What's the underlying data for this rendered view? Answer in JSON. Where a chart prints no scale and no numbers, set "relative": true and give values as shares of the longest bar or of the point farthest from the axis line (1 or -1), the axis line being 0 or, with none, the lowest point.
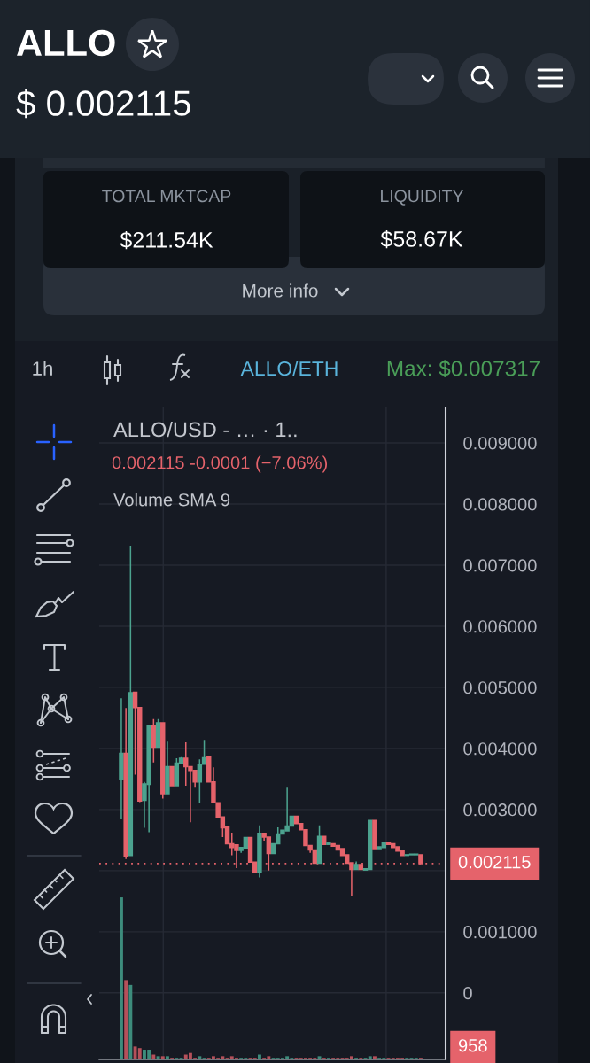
{
  "chart_data": [
    {
      "type": "other",
      "title": "ALLO",
      "annotations": [
        "$ 0.002115",
        "TOTAL MKTCAP",
        "$211.54K",
        "LIQUIDITY",
        "$58.67K",
        "More info",
        "1h",
        "ALLO/ETH",
        "Max: $0.007317"
      ]
    },
    {
      "type": "candlestick",
      "title": "ALLO/USD - … · 1..",
      "subtitle": "0.002115 -0.0001 (−7.06%)",
      "categories": [
        null,
        null,
        null,
        null,
        null,
        null,
        null,
        null,
        null,
        null,
        null,
        null,
        null,
        null,
        null,
        null,
        null,
        null,
        null,
        null,
        null,
        null,
        null,
        null,
        null,
        null,
        null,
        null,
        null,
        null,
        null,
        null,
        null,
        null,
        null,
        null,
        null,
        null,
        null,
        null,
        null,
        null,
        null,
        null,
        null,
        null,
        null,
        null,
        null,
        null,
        null,
        null,
        null,
        null,
        null,
        null,
        null,
        null,
        null,
        null,
        null,
        null,
        null,
        null,
        null,
        null
      ],
      "ohlc": [
        [
          0.00349,
          0.00482,
          0.00284,
          0.00392
        ],
        [
          0.00392,
          0.00466,
          0.00219,
          0.00224
        ],
        [
          0.00225,
          0.007317,
          0.00225,
          0.00491
        ],
        [
          0.00492,
          0.00492,
          0.00357,
          0.00467
        ],
        [
          0.00467,
          0.00467,
          0.00312,
          0.00314
        ],
        [
          0.00315,
          0.00345,
          0.0027,
          0.00342
        ],
        [
          0.00341,
          0.00438,
          0.00263,
          0.00438
        ],
        [
          0.00438,
          0.00448,
          0.00377,
          0.00402
        ],
        [
          0.00402,
          0.00448,
          0.00402,
          0.00442
        ],
        [
          0.00442,
          0.00442,
          0.00318,
          0.00326
        ],
        [
          0.00326,
          0.00411,
          0.00326,
          0.0037
        ],
        [
          0.0037,
          0.0037,
          0.00339,
          0.00339
        ],
        [
          0.00339,
          0.00384,
          0.00339,
          0.00376
        ],
        [
          0.00376,
          0.00387,
          0.00376,
          0.00384
        ],
        [
          0.00384,
          0.0041,
          0.00339,
          0.0037
        ],
        [
          0.0037,
          0.0037,
          0.00279,
          0.00364
        ],
        [
          0.00364,
          0.00364,
          0.00337,
          0.00345
        ],
        [
          0.00345,
          0.00382,
          0.00311,
          0.00374
        ],
        [
          0.00374,
          0.00414,
          0.00374,
          0.00386
        ],
        [
          0.00387,
          0.00388,
          0.00345,
          0.00345
        ],
        [
          0.00345,
          0.00369,
          0.00311,
          0.00311
        ],
        [
          0.00311,
          0.00311,
          0.00288,
          0.00288
        ],
        [
          0.00288,
          0.00288,
          0.00255,
          0.0027
        ],
        [
          0.00272,
          0.00272,
          0.00244,
          0.00244
        ],
        [
          0.00244,
          0.00262,
          0.00225,
          0.00238
        ],
        [
          0.00242,
          0.00242,
          0.00204,
          0.00233
        ],
        [
          0.00233,
          0.00238,
          0.00229,
          0.00238
        ],
        [
          0.00237,
          0.00254,
          0.00237,
          0.00254
        ],
        [
          0.00254,
          0.00254,
          0.00214,
          0.00214
        ],
        [
          0.00214,
          0.00214,
          0.00198,
          0.00198
        ],
        [
          0.00198,
          0.00274,
          0.00189,
          0.00261
        ],
        [
          0.00261,
          0.00261,
          0.00249,
          0.00255
        ],
        [
          0.00255,
          0.00255,
          0.002,
          0.00228
        ],
        [
          0.00228,
          0.00244,
          0.00228,
          0.00244
        ],
        [
          0.00244,
          0.00271,
          0.00244,
          0.0026
        ],
        [
          0.0026,
          0.00266,
          0.0026,
          0.00266
        ],
        [
          0.00265,
          0.00337,
          0.00265,
          0.00273
        ],
        [
          0.00273,
          0.00289,
          0.00273,
          0.00289
        ],
        [
          0.00289,
          0.00289,
          0.00277,
          0.00277
        ],
        [
          0.00277,
          0.00277,
          0.00267,
          0.00267
        ],
        [
          0.00267,
          0.00267,
          0.00241,
          0.00241
        ],
        [
          0.00241,
          0.00241,
          0.00229,
          0.00234
        ],
        [
          0.00234,
          0.00234,
          0.00212,
          0.00212
        ],
        [
          0.00212,
          0.00274,
          0.00212,
          0.00256
        ],
        [
          0.00256,
          0.00256,
          0.00243,
          0.00243
        ],
        [
          0.00243,
          0.00245,
          0.00243,
          0.00245
        ],
        [
          0.00244,
          0.00244,
          0.0024,
          0.0024
        ],
        [
          0.00241,
          0.00241,
          0.00234,
          0.00234
        ],
        [
          0.00236,
          0.00236,
          0.00225,
          0.00225
        ],
        [
          0.00226,
          0.00226,
          0.00212,
          0.00212
        ],
        [
          0.00213,
          0.00213,
          0.00158,
          0.00202
        ],
        [
          0.00202,
          0.00215,
          0.00202,
          0.0021
        ],
        [
          0.0021,
          0.0021,
          0.00202,
          0.00202
        ],
        [
          0.00201,
          0.00203,
          0.00201,
          0.00203
        ],
        [
          0.00202,
          0.00282,
          0.00202,
          0.00282
        ],
        [
          0.00282,
          0.00282,
          0.00236,
          0.00236
        ],
        [
          0.00236,
          0.00239,
          0.00236,
          0.00239
        ],
        [
          0.00238,
          0.00246,
          0.00238,
          0.00246
        ],
        [
          0.00246,
          0.00246,
          0.00243,
          0.00243
        ],
        [
          0.00244,
          0.00244,
          0.00238,
          0.00238
        ],
        [
          0.00239,
          0.00239,
          0.00232,
          0.00232
        ],
        [
          0.00233,
          0.00233,
          0.00225,
          0.00225
        ],
        [
          0.00225,
          0.00226,
          0.00225,
          0.00226
        ],
        [
          0.00226,
          0.00227,
          0.00226,
          0.00227
        ],
        [
          0.00226,
          0.00227,
          0.00226,
          0.00227
        ],
        [
          0.00226,
          0.00226,
          0.002115,
          0.002115
        ]
      ],
      "colors": [
        "#4ca38f",
        "#e5636b",
        "#4ca38f",
        "#e5636b",
        "#e5636b",
        "#4ca38f",
        "#4ca38f",
        "#e5636b",
        "#4ca38f",
        "#e5636b",
        "#4ca38f",
        "#e5636b",
        "#4ca38f",
        "#4ca38f",
        "#e5636b",
        "#e5636b",
        "#e5636b",
        "#4ca38f",
        "#4ca38f",
        "#e5636b",
        "#e5636b",
        "#e5636b",
        "#e5636b",
        "#e5636b",
        "#e5636b",
        "#e5636b",
        "#4ca38f",
        "#4ca38f",
        "#e5636b",
        "#e5636b",
        "#4ca38f",
        "#e5636b",
        "#e5636b",
        "#4ca38f",
        "#4ca38f",
        "#4ca38f",
        "#4ca38f",
        "#4ca38f",
        "#e5636b",
        "#e5636b",
        "#e5636b",
        "#e5636b",
        "#e5636b",
        "#4ca38f",
        "#e5636b",
        "#4ca38f",
        "#e5636b",
        "#e5636b",
        "#e5636b",
        "#e5636b",
        "#e5636b",
        "#4ca38f",
        "#e5636b",
        "#4ca38f",
        "#4ca38f",
        "#e5636b",
        "#4ca38f",
        "#4ca38f",
        "#e5636b",
        "#e5636b",
        "#e5636b",
        "#e5636b",
        "#4ca38f",
        "#4ca38f",
        "#4ca38f",
        "#e5636b"
      ],
      "ylim": [
        -0.00109,
        0.00958
      ],
      "yticks": [
        0,
        {
          "value": 0.001,
          "label": "0.001000"
        },
        {
          "value": 0.002,
          "label": null
        },
        {
          "value": 0.003,
          "label": "0.003000"
        },
        {
          "value": 0.004,
          "label": "0.004000"
        },
        {
          "value": 0.005,
          "label": "0.005000"
        },
        {
          "value": 0.006,
          "label": "0.006000"
        },
        {
          "value": 0.007,
          "label": "0.007000"
        },
        {
          "value": 0.008,
          "label": "0.008000"
        },
        {
          "value": 0.009,
          "label": "0.009000"
        }
      ],
      "grid": true,
      "ref_lines": [
        {
          "axis": "y",
          "value": 0.002115,
          "label": "0.002115",
          "color": "#e5636b",
          "line_style": "dotted"
        }
      ]
    },
    {
      "type": "bar",
      "relative": true,
      "title": "Volume SMA 9",
      "annotations": [
        "958"
      ],
      "categories": [
        null,
        null,
        null,
        null,
        null,
        null,
        null,
        null,
        null,
        null,
        null,
        null,
        null,
        null,
        null,
        null,
        null,
        null,
        null,
        null,
        null,
        null,
        null,
        null,
        null,
        null,
        null,
        null,
        null,
        null,
        null,
        null,
        null,
        null,
        null,
        null,
        null,
        null,
        null,
        null,
        null,
        null,
        null,
        null,
        null,
        null,
        null,
        null,
        null,
        null,
        null,
        null,
        null,
        null,
        null,
        null,
        null,
        null,
        null,
        null,
        null,
        null,
        null,
        null,
        null,
        null
      ],
      "values": [
        1,
        0.49,
        0.46,
        0.08,
        0.07,
        0.06,
        0.06,
        0.03,
        0.02,
        0.02,
        0.02,
        0.01,
        0.01,
        0.01,
        0.03,
        0.04,
        0.01,
        0.02,
        0.01,
        0.01,
        0.02,
        0.01,
        0.02,
        0.01,
        0.02,
        0.01,
        0.01,
        0.01,
        0.01,
        0.01,
        0.03,
        0.01,
        0.02,
        0.01,
        0.01,
        0.01,
        0.02,
        0.01,
        0.01,
        0.01,
        0.01,
        0.01,
        0.01,
        0.02,
        0.01,
        0.01,
        0.01,
        0.01,
        0.01,
        0.01,
        0.02,
        0.01,
        0.01,
        0.01,
        0.02,
        0.02,
        0.01,
        0.01,
        0.01,
        0.01,
        0.01,
        0.01,
        0.01,
        0.01,
        0.01,
        0.01
      ],
      "colors": [
        "#3d8c7c",
        "#b5505a",
        "#3d8c7c",
        "#b5505a",
        "#b5505a",
        "#3d8c7c",
        "#3d8c7c",
        "#b5505a",
        "#3d8c7c",
        "#b5505a",
        "#3d8c7c",
        "#b5505a",
        "#3d8c7c",
        "#3d8c7c",
        "#b5505a",
        "#b5505a",
        "#b5505a",
        "#3d8c7c",
        "#3d8c7c",
        "#b5505a",
        "#b5505a",
        "#b5505a",
        "#b5505a",
        "#b5505a",
        "#b5505a",
        "#b5505a",
        "#3d8c7c",
        "#3d8c7c",
        "#b5505a",
        "#b5505a",
        "#3d8c7c",
        "#b5505a",
        "#b5505a",
        "#3d8c7c",
        "#3d8c7c",
        "#3d8c7c",
        "#3d8c7c",
        "#3d8c7c",
        "#b5505a",
        "#b5505a",
        "#b5505a",
        "#b5505a",
        "#b5505a",
        "#3d8c7c",
        "#b5505a",
        "#3d8c7c",
        "#b5505a",
        "#b5505a",
        "#b5505a",
        "#b5505a",
        "#b5505a",
        "#3d8c7c",
        "#b5505a",
        "#3d8c7c",
        "#3d8c7c",
        "#b5505a",
        "#3d8c7c",
        "#3d8c7c",
        "#b5505a",
        "#b5505a",
        "#b5505a",
        "#b5505a",
        "#3d8c7c",
        "#3d8c7c",
        "#3d8c7c",
        "#b5505a"
      ]
    }
  ]
}
